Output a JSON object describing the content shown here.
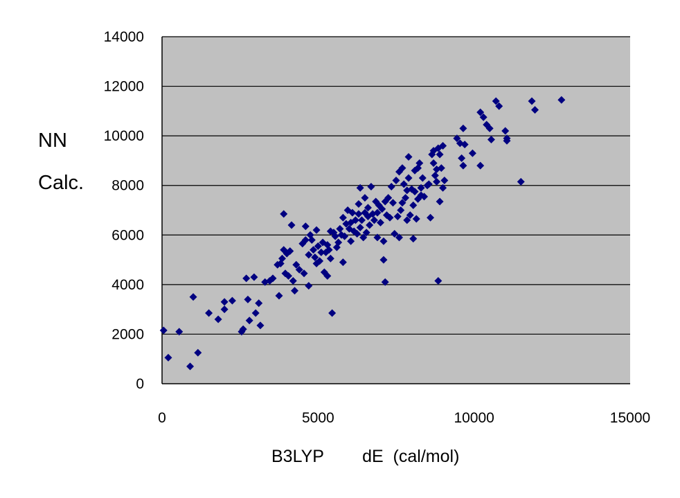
{
  "chart_data": {
    "type": "scatter",
    "title": "",
    "xlabel": "B3LYP        dE  (cal/mol)",
    "ylabel_lines": [
      "NN",
      "Calc."
    ],
    "xlim": [
      0,
      15000
    ],
    "ylim": [
      0,
      14000
    ],
    "x_ticks": [
      0,
      5000,
      10000,
      15000
    ],
    "y_ticks": [
      0,
      2000,
      4000,
      6000,
      8000,
      10000,
      12000,
      14000
    ],
    "x_tick_labels": [
      "0",
      "5000",
      "10000",
      "15000"
    ],
    "y_tick_labels": [
      "0",
      "2000",
      "4000",
      "6000",
      "8000",
      "10000",
      "12000",
      "14000"
    ],
    "grid": "horizontal",
    "legend": "none",
    "colors": {
      "plot_background": "#c0c0c0",
      "marker": "#000080",
      "gridline": "#000000"
    },
    "series": [
      {
        "marker": "diamond",
        "points": [
          [
            50,
            2150
          ],
          [
            200,
            1050
          ],
          [
            550,
            2100
          ],
          [
            900,
            700
          ],
          [
            1000,
            3500
          ],
          [
            1150,
            1250
          ],
          [
            1500,
            2850
          ],
          [
            1800,
            2600
          ],
          [
            2000,
            3300
          ],
          [
            2000,
            3000
          ],
          [
            2250,
            3350
          ],
          [
            2550,
            2100
          ],
          [
            2600,
            2200
          ],
          [
            2700,
            4250
          ],
          [
            2750,
            3400
          ],
          [
            2800,
            2550
          ],
          [
            2950,
            4300
          ],
          [
            3000,
            2850
          ],
          [
            3100,
            3250
          ],
          [
            3150,
            2350
          ],
          [
            3300,
            4100
          ],
          [
            3450,
            4150
          ],
          [
            3550,
            4250
          ],
          [
            3700,
            4800
          ],
          [
            3750,
            3550
          ],
          [
            3800,
            4850
          ],
          [
            3850,
            5050
          ],
          [
            3900,
            5400
          ],
          [
            3900,
            6850
          ],
          [
            3950,
            4450
          ],
          [
            4000,
            5250
          ],
          [
            4050,
            4350
          ],
          [
            4100,
            5350
          ],
          [
            4150,
            6400
          ],
          [
            4200,
            4150
          ],
          [
            4250,
            3750
          ],
          [
            4300,
            4800
          ],
          [
            4400,
            4600
          ],
          [
            4500,
            5650
          ],
          [
            4550,
            4450
          ],
          [
            4600,
            5800
          ],
          [
            4600,
            6350
          ],
          [
            4700,
            3950
          ],
          [
            4700,
            5200
          ],
          [
            4750,
            6000
          ],
          [
            4800,
            5800
          ],
          [
            4850,
            5400
          ],
          [
            4900,
            5100
          ],
          [
            4950,
            4850
          ],
          [
            4950,
            6200
          ],
          [
            5000,
            5550
          ],
          [
            5050,
            4950
          ],
          [
            5100,
            5300
          ],
          [
            5150,
            5700
          ],
          [
            5200,
            4500
          ],
          [
            5250,
            5300
          ],
          [
            5300,
            5600
          ],
          [
            5300,
            4350
          ],
          [
            5350,
            5400
          ],
          [
            5400,
            6150
          ],
          [
            5400,
            5050
          ],
          [
            5450,
            2850
          ],
          [
            5500,
            6100
          ],
          [
            5550,
            5950
          ],
          [
            5600,
            5500
          ],
          [
            5650,
            5700
          ],
          [
            5700,
            6250
          ],
          [
            5750,
            6000
          ],
          [
            5800,
            4900
          ],
          [
            5800,
            6700
          ],
          [
            5850,
            5950
          ],
          [
            5900,
            6450
          ],
          [
            5950,
            7000
          ],
          [
            6000,
            6250
          ],
          [
            6050,
            5750
          ],
          [
            6050,
            6500
          ],
          [
            6100,
            6900
          ],
          [
            6150,
            6150
          ],
          [
            6200,
            6600
          ],
          [
            6250,
            6050
          ],
          [
            6300,
            7250
          ],
          [
            6300,
            6850
          ],
          [
            6350,
            6300
          ],
          [
            6350,
            7900
          ],
          [
            6400,
            6600
          ],
          [
            6450,
            5900
          ],
          [
            6500,
            6900
          ],
          [
            6500,
            7500
          ],
          [
            6550,
            6100
          ],
          [
            6600,
            6750
          ],
          [
            6600,
            7100
          ],
          [
            6650,
            6400
          ],
          [
            6700,
            7950
          ],
          [
            6750,
            6850
          ],
          [
            6800,
            6600
          ],
          [
            6850,
            7350
          ],
          [
            6900,
            5900
          ],
          [
            6900,
            6900
          ],
          [
            6950,
            7200
          ],
          [
            7000,
            6500
          ],
          [
            7050,
            7050
          ],
          [
            7100,
            5750
          ],
          [
            7100,
            5000
          ],
          [
            7150,
            4100
          ],
          [
            7150,
            7350
          ],
          [
            7200,
            6800
          ],
          [
            7250,
            7500
          ],
          [
            7300,
            6700
          ],
          [
            7350,
            7950
          ],
          [
            7400,
            7300
          ],
          [
            7450,
            6050
          ],
          [
            7500,
            8200
          ],
          [
            7550,
            6750
          ],
          [
            7600,
            8550
          ],
          [
            7600,
            5900
          ],
          [
            7650,
            7000
          ],
          [
            7700,
            7300
          ],
          [
            7700,
            8700
          ],
          [
            7750,
            8050
          ],
          [
            7800,
            7500
          ],
          [
            7850,
            7800
          ],
          [
            7850,
            6600
          ],
          [
            7900,
            9150
          ],
          [
            7900,
            8300
          ],
          [
            7950,
            6800
          ],
          [
            8000,
            7850
          ],
          [
            8050,
            7200
          ],
          [
            8050,
            5850
          ],
          [
            8100,
            8600
          ],
          [
            8100,
            7750
          ],
          [
            8150,
            6650
          ],
          [
            8200,
            7450
          ],
          [
            8200,
            8700
          ],
          [
            8250,
            8900
          ],
          [
            8300,
            7900
          ],
          [
            8300,
            7600
          ],
          [
            8350,
            8300
          ],
          [
            8400,
            7550
          ],
          [
            8500,
            8000
          ],
          [
            8550,
            8050
          ],
          [
            8600,
            6700
          ],
          [
            8650,
            9250
          ],
          [
            8700,
            8900
          ],
          [
            8700,
            9400
          ],
          [
            8750,
            8400
          ],
          [
            8800,
            8650
          ],
          [
            8800,
            8150
          ],
          [
            8850,
            9500
          ],
          [
            8850,
            4150
          ],
          [
            8900,
            9250
          ],
          [
            8900,
            7350
          ],
          [
            8950,
            8700
          ],
          [
            9000,
            9600
          ],
          [
            9000,
            7900
          ],
          [
            9050,
            8200
          ],
          [
            9450,
            9900
          ],
          [
            9550,
            9700
          ],
          [
            9600,
            9100
          ],
          [
            9650,
            8800
          ],
          [
            9700,
            9650
          ],
          [
            9650,
            10300
          ],
          [
            9950,
            9300
          ],
          [
            10200,
            10950
          ],
          [
            10200,
            8800
          ],
          [
            10300,
            10750
          ],
          [
            10400,
            10450
          ],
          [
            10500,
            10300
          ],
          [
            10550,
            9850
          ],
          [
            10700,
            11400
          ],
          [
            10800,
            11200
          ],
          [
            11000,
            10200
          ],
          [
            11050,
            9900
          ],
          [
            11050,
            9800
          ],
          [
            11500,
            8150
          ],
          [
            11850,
            11400
          ],
          [
            11950,
            11050
          ],
          [
            12800,
            11450
          ]
        ]
      }
    ]
  }
}
